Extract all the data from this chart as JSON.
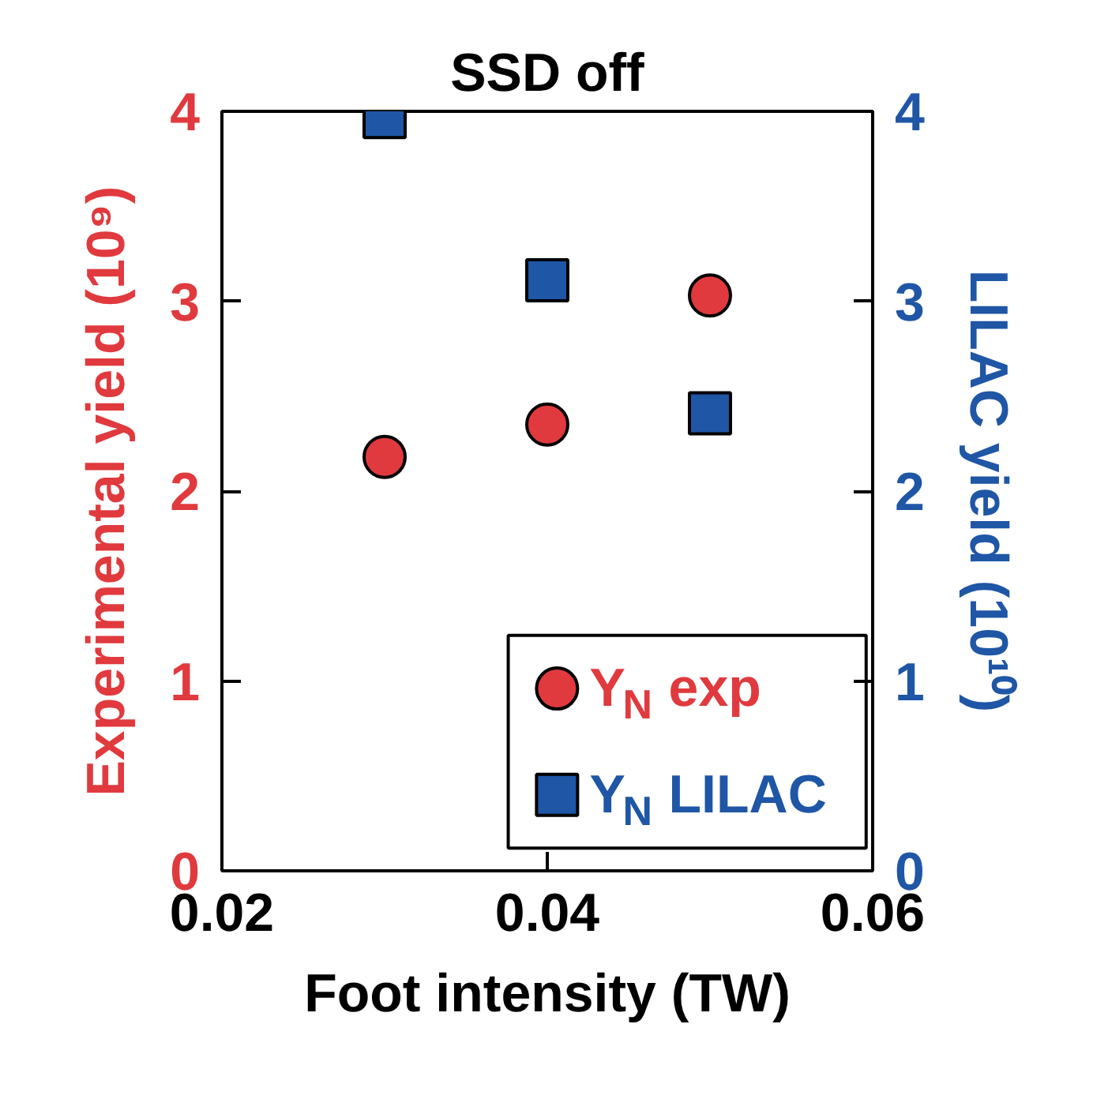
{
  "chart_data": {
    "type": "scatter",
    "title": "SSD off",
    "xlabel": "Foot intensity (TW)",
    "ylabel": "Experimental yield (10⁹)",
    "y2label": "LILAC yield (10¹⁰)",
    "x": [
      0.03,
      0.04,
      0.05
    ],
    "series": [
      {
        "name": "Y$_{N}$ exp",
        "color": "#e03a3e",
        "marker": "circle",
        "values": [
          2.18,
          2.35,
          3.03
        ]
      },
      {
        "name": "Y$_{N}$ LILAC",
        "color": "#1f56a5",
        "marker": "square",
        "axis": "y2",
        "values": [
          3.97,
          3.11,
          2.41
        ]
      }
    ],
    "xlim": [
      0.02,
      0.06
    ],
    "xticks": [
      0.02,
      0.04,
      0.06
    ],
    "ylim": [
      0,
      4
    ],
    "yticks": [
      0,
      1,
      2,
      3,
      4
    ],
    "y2lim": [
      0,
      4
    ],
    "y2ticks": [
      0,
      1,
      2,
      3,
      4
    ],
    "grid": false,
    "legend": "bottom right"
  }
}
